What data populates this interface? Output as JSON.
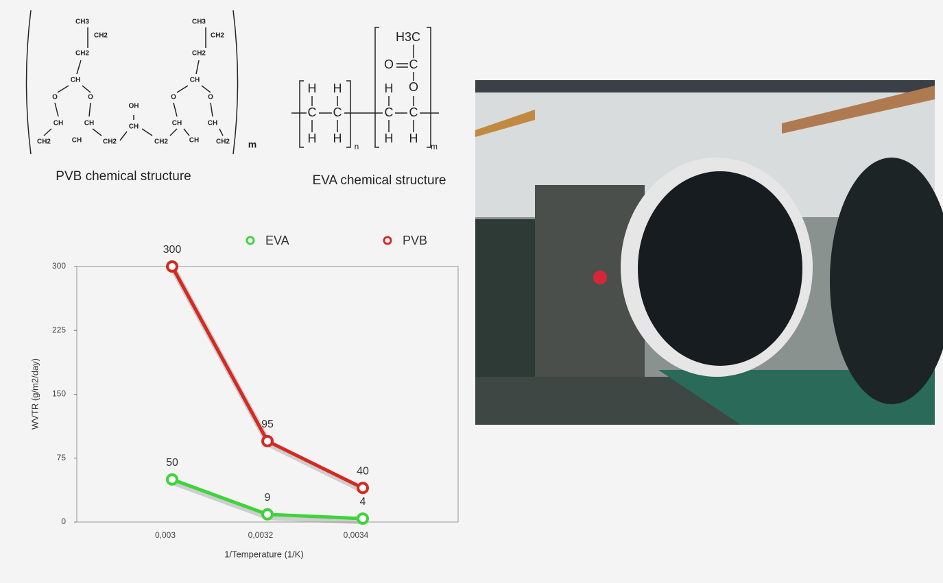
{
  "structures": {
    "pvb": {
      "caption": "PVB chemical structure",
      "atoms": [
        "CH3",
        "CH2",
        "CH2",
        "CH",
        "O",
        "O",
        "CH",
        "CH",
        "CH2",
        "CH",
        "CH2",
        "OH",
        "CH",
        "CH2",
        "CH3",
        "CH2",
        "CH2",
        "CH",
        "O",
        "O",
        "CH",
        "CH",
        "CH",
        "CH2",
        "m"
      ]
    },
    "eva": {
      "caption": "EVA chemical structure",
      "atoms": [
        "H",
        "H",
        "C",
        "C",
        "H",
        "H",
        "n",
        "H3C",
        "O",
        "C",
        "O",
        "H",
        "C",
        "C",
        "H",
        "H",
        "m"
      ]
    }
  },
  "chart_data": {
    "type": "line",
    "categories": [
      "0,003",
      "0,0032",
      "0,0034"
    ],
    "series": [
      {
        "name": "EVA",
        "color": "#3ed43a",
        "values": [
          50,
          9,
          4
        ]
      },
      {
        "name": "PVB",
        "color": "#d42a22",
        "values": [
          300,
          95,
          40
        ]
      }
    ],
    "ylim": [
      0,
      300
    ],
    "yticks": [
      0,
      75,
      150,
      225,
      300
    ],
    "y_label": "WVTR (g/m2/day)",
    "x_label": "1/Temperature (1/K)"
  }
}
